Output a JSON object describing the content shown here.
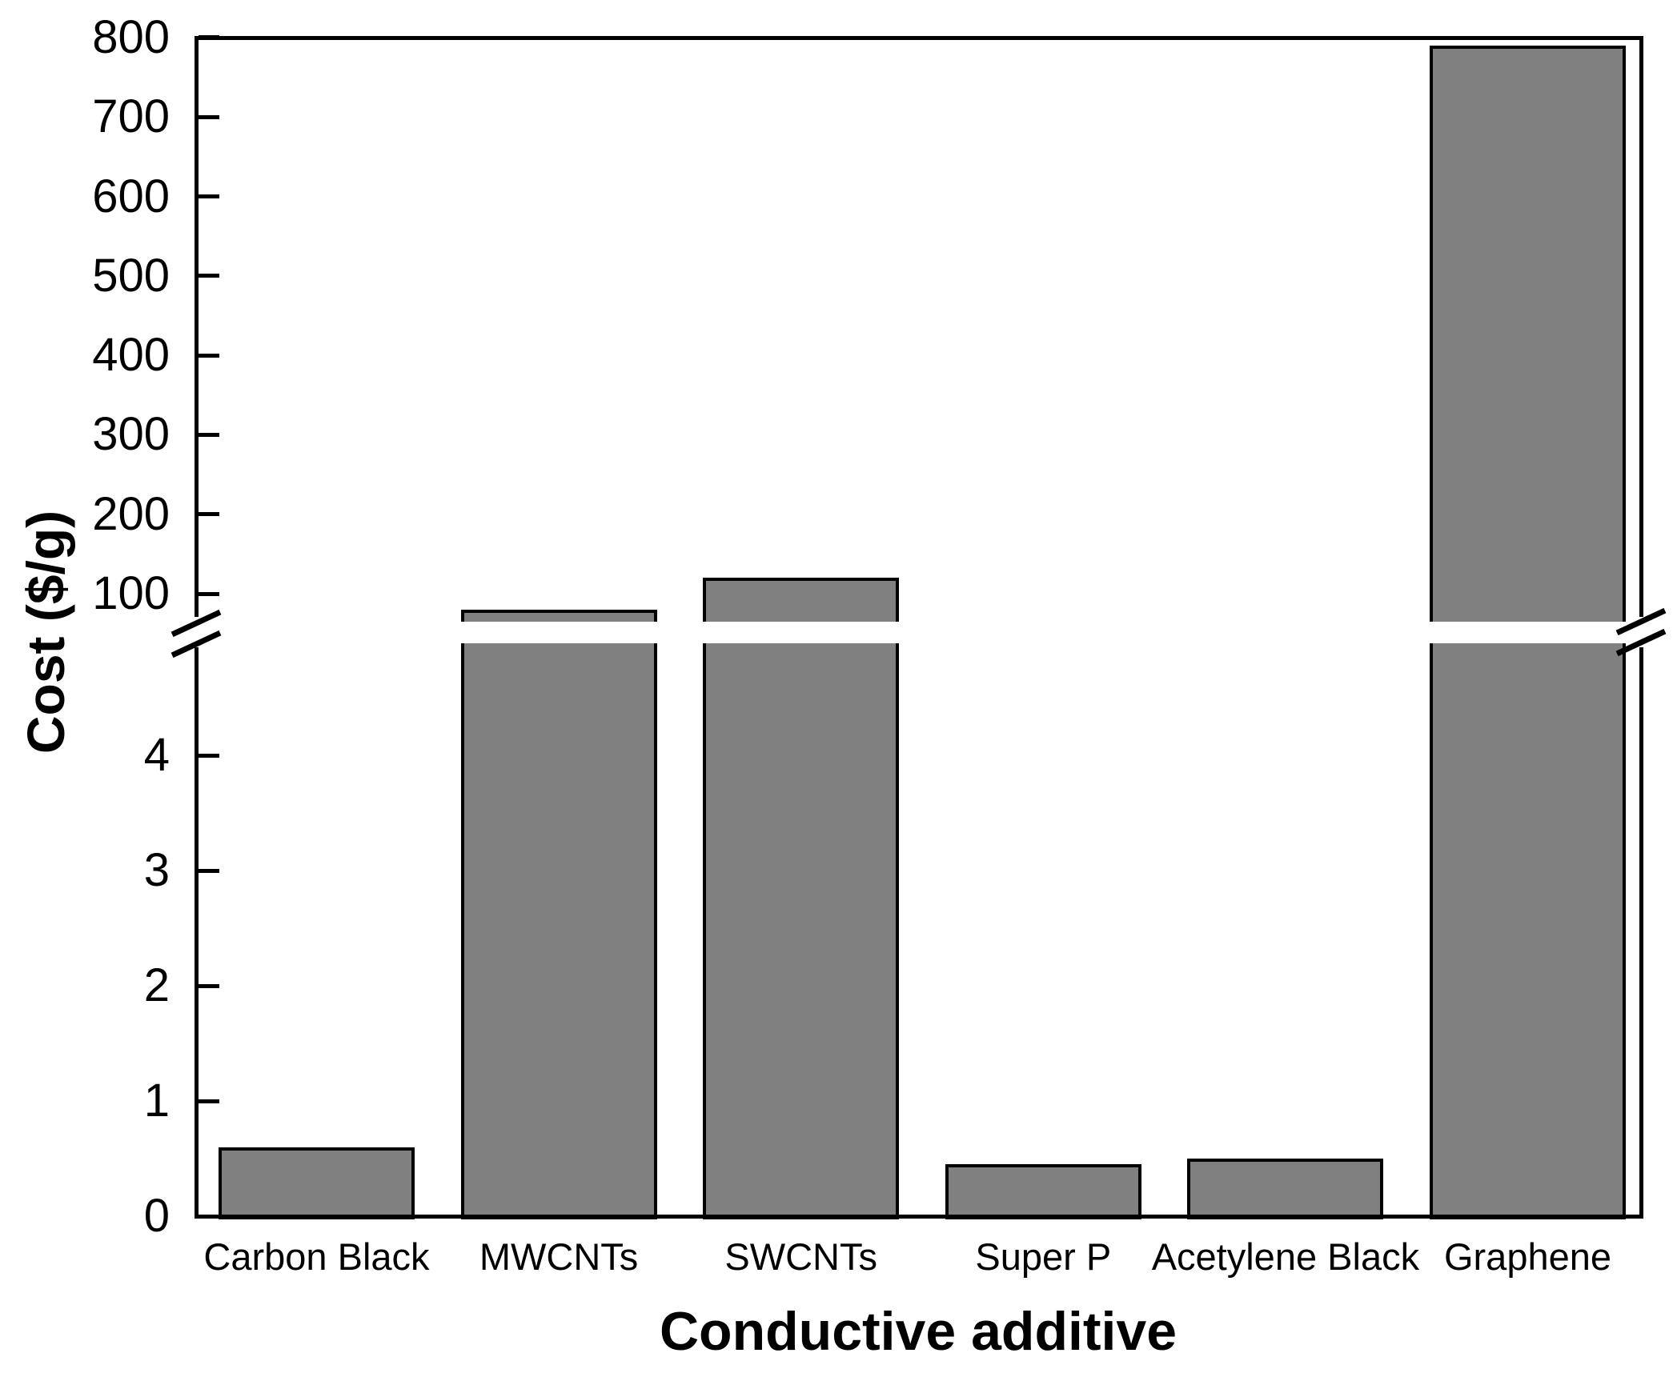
{
  "chart_data": {
    "type": "bar",
    "title": "",
    "xlabel": "Conductive additive",
    "ylabel": "Cost ($/g)",
    "categories": [
      "Carbon Black",
      "MWCNTs",
      "SWCNTs",
      "Super P",
      "Acetylene Black",
      "Graphene"
    ],
    "values": [
      0.6,
      80,
      120,
      0.45,
      0.5,
      790
    ],
    "series": [
      {
        "name": "Cost",
        "values": [
          0.6,
          80,
          120,
          0.45,
          0.5,
          790
        ]
      }
    ],
    "bar_color": "#808080",
    "bar_edge_color": "#000000",
    "background_color": "#ffffff",
    "grid": false,
    "legend": null,
    "axis_break": {
      "enabled": true,
      "lower_segment_range": [
        0,
        5
      ],
      "upper_segment_range": [
        60,
        800
      ],
      "marker": "double-slash"
    },
    "lower_ticks": [
      0,
      1,
      2,
      3,
      4
    ],
    "upper_ticks": [
      100,
      200,
      300,
      400,
      500,
      600,
      700,
      800
    ],
    "lower_tick_labels": [
      "0",
      "1",
      "2",
      "3",
      "4"
    ],
    "upper_tick_labels": [
      "100",
      "200",
      "300",
      "400",
      "500",
      "600",
      "700",
      "800"
    ]
  }
}
